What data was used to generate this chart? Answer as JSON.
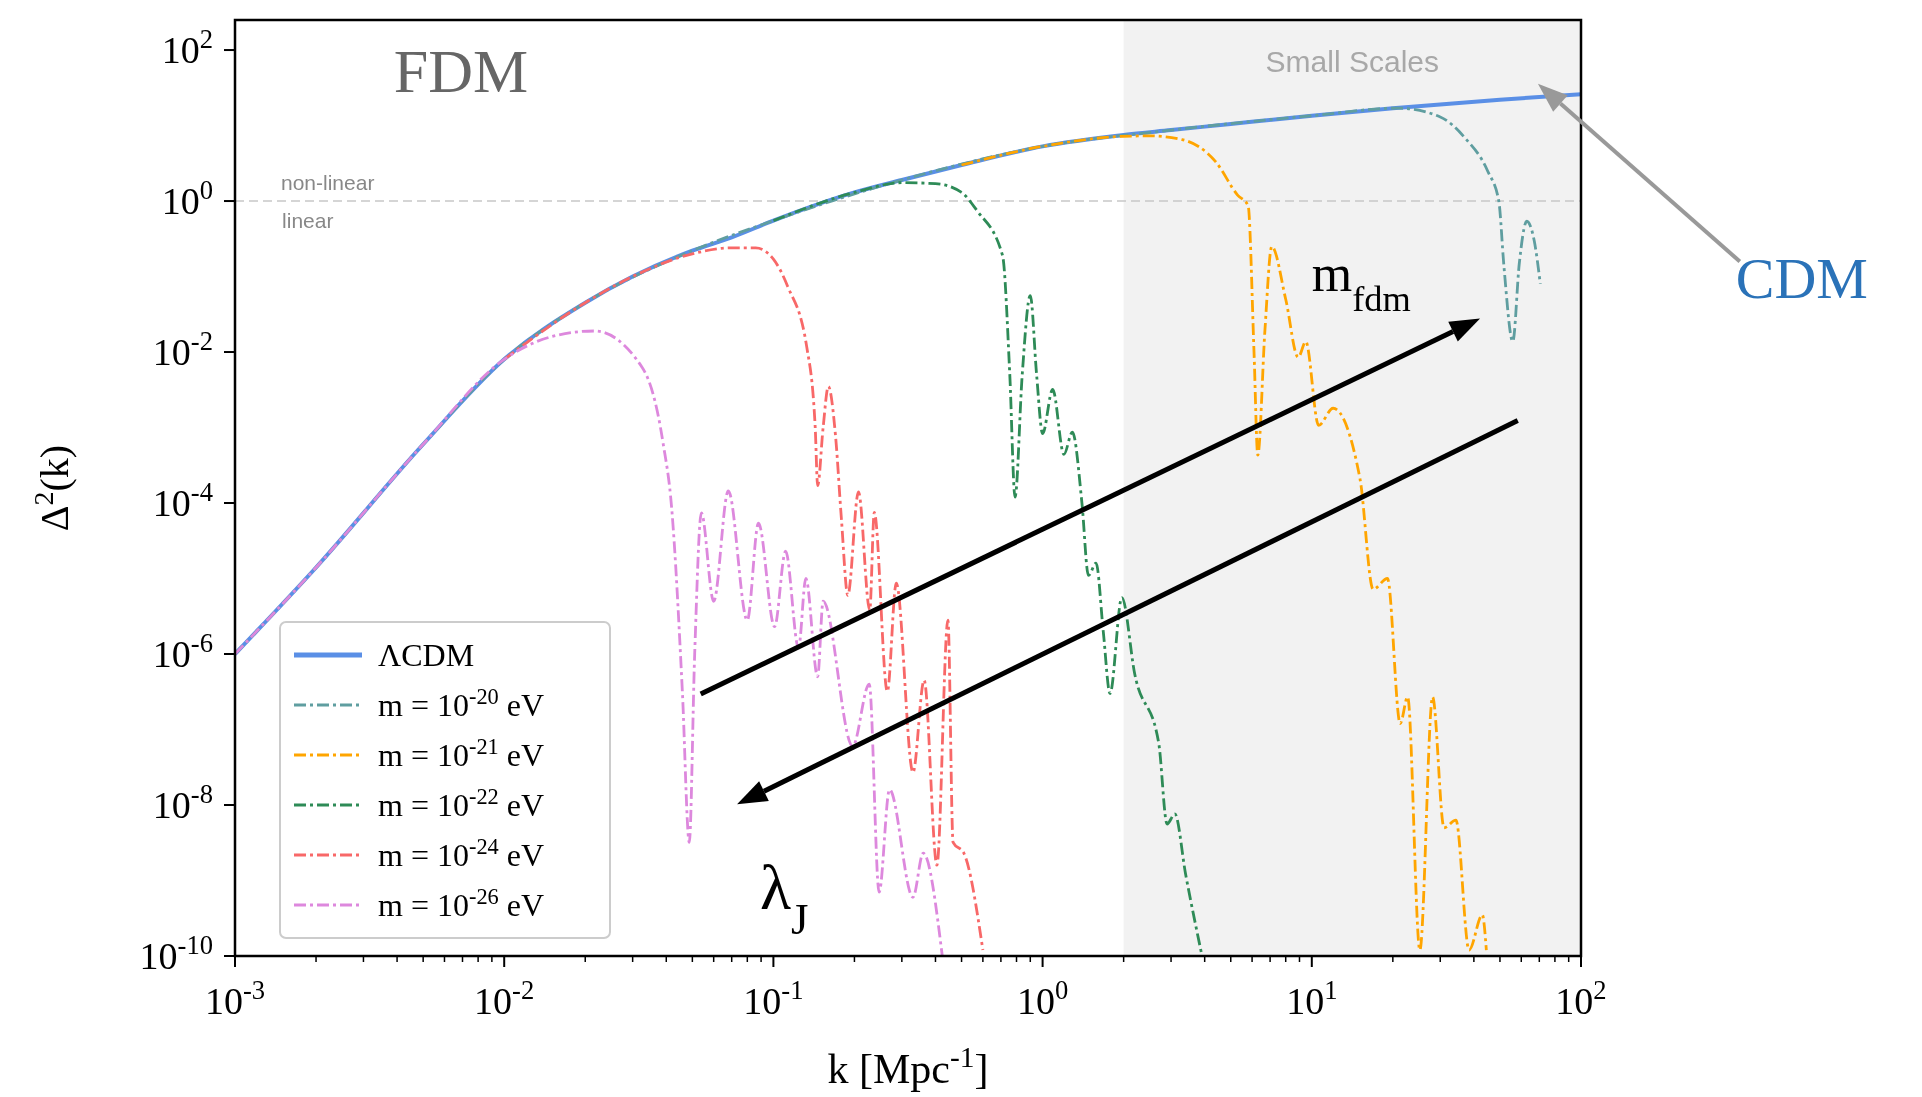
{
  "chart_data": {
    "type": "line",
    "xlabel": "k  [Mpc$^{-1}$]",
    "ylabel": "Δ$^{2}$(k)",
    "log": "xy",
    "grid": false,
    "legend": "bottom left",
    "xlim": [
      0.001,
      100
    ],
    "ylim": [
      1e-10,
      250
    ],
    "xticks": [
      {
        "value": 0.001,
        "label": "10$^{-3}$"
      },
      {
        "value": 0.002,
        "label": null
      },
      {
        "value": 0.003,
        "label": null
      },
      {
        "value": 0.004,
        "label": null
      },
      {
        "value": 0.005,
        "label": null
      },
      {
        "value": 0.006,
        "label": null
      },
      {
        "value": 0.007,
        "label": null
      },
      {
        "value": 0.008,
        "label": null
      },
      {
        "value": 0.009,
        "label": null
      },
      {
        "value": 0.01,
        "label": "10$^{-2}$"
      },
      {
        "value": 0.02,
        "label": null
      },
      {
        "value": 0.03,
        "label": null
      },
      {
        "value": 0.04,
        "label": null
      },
      {
        "value": 0.05,
        "label": null
      },
      {
        "value": 0.06,
        "label": null
      },
      {
        "value": 0.07,
        "label": null
      },
      {
        "value": 0.08,
        "label": null
      },
      {
        "value": 0.09,
        "label": null
      },
      {
        "value": 0.1,
        "label": "10$^{-1}$"
      },
      {
        "value": 0.2,
        "label": null
      },
      {
        "value": 0.3,
        "label": null
      },
      {
        "value": 0.4,
        "label": null
      },
      {
        "value": 0.5,
        "label": null
      },
      {
        "value": 0.6,
        "label": null
      },
      {
        "value": 0.7,
        "label": null
      },
      {
        "value": 0.8,
        "label": null
      },
      {
        "value": 0.9,
        "label": null
      },
      {
        "value": 1,
        "label": "10$^{0}$"
      },
      {
        "value": 2,
        "label": null
      },
      {
        "value": 3,
        "label": null
      },
      {
        "value": 4,
        "label": null
      },
      {
        "value": 5,
        "label": null
      },
      {
        "value": 6,
        "label": null
      },
      {
        "value": 7,
        "label": null
      },
      {
        "value": 8,
        "label": null
      },
      {
        "value": 9,
        "label": null
      },
      {
        "value": 10,
        "label": "10$^{1}$"
      },
      {
        "value": 20,
        "label": null
      },
      {
        "value": 30,
        "label": null
      },
      {
        "value": 40,
        "label": null
      },
      {
        "value": 50,
        "label": null
      },
      {
        "value": 60,
        "label": null
      },
      {
        "value": 70,
        "label": null
      },
      {
        "value": 80,
        "label": null
      },
      {
        "value": 90,
        "label": null
      },
      {
        "value": 100,
        "label": "10$^{2}$"
      }
    ],
    "yticks": [
      {
        "value": 1e-10,
        "label": "10$^{-10}$"
      },
      {
        "value": 1e-08,
        "label": "10$^{-8}$"
      },
      {
        "value": 1e-06,
        "label": "10$^{-6}$"
      },
      {
        "value": 0.0001,
        "label": "10$^{-4}$"
      },
      {
        "value": 0.01,
        "label": "10$^{-2}$"
      },
      {
        "value": 1,
        "label": "10$^{0}$"
      },
      {
        "value": 100,
        "label": "10$^{2}$"
      }
    ],
    "bands": [
      {
        "axis": "x",
        "from": 2,
        "to": 100,
        "label": "Small Scales",
        "color": "#f2f2f2"
      }
    ],
    "ref_lines": [
      {
        "axis": "y",
        "value": 1,
        "label": "non-linear",
        "color": "#c8c8c8",
        "line_style": "dashed"
      }
    ],
    "annotations": [
      "FDM",
      "CDM",
      "m$_{fdm}$",
      "λ$_{J}$",
      "linear"
    ],
    "series": [
      {
        "name": "ΛCDM",
        "color": "#5a8fe6",
        "line_style": "solid",
        "x": [
          0.001,
          0.002,
          0.005,
          0.01,
          0.02,
          0.03,
          0.05,
          0.07,
          0.1,
          0.2,
          0.3,
          0.5,
          1,
          2,
          3,
          5,
          10,
          20,
          50,
          100
        ],
        "values": [
          1e-06,
          1.4e-05,
          0.0006,
          0.008,
          0.045,
          0.1,
          0.22,
          0.33,
          0.55,
          1.3,
          1.9,
          3,
          5.3,
          7.5,
          8.7,
          10.5,
          13.5,
          17,
          22,
          26
        ]
      },
      {
        "name": "m = 10$^{-20}$ eV",
        "color": "#5f9ea0",
        "line_style": "dashdot",
        "x": [
          0.001,
          0.002,
          0.005,
          0.01,
          0.02,
          0.05,
          0.1,
          0.3,
          1,
          3,
          10,
          21,
          30,
          37,
          45,
          49.5,
          51.7,
          55.8,
          59,
          62.9,
          67,
          70.6
        ],
        "values": [
          1e-06,
          1.4e-05,
          0.0006,
          0.008,
          0.045,
          0.22,
          0.55,
          1.9,
          5.3,
          8.7,
          13.5,
          17,
          13,
          6.9,
          2.5,
          1.0,
          0.14,
          0.0138,
          0.15,
          0.54,
          0.3,
          0.08
        ]
      },
      {
        "name": "m = 10$^{-21}$ eV",
        "color": "#ffa500",
        "line_style": "dashdot",
        "x": [
          0.5,
          1,
          2,
          2.5,
          3.3,
          4.4,
          5.3,
          5.8,
          6.1,
          6.3,
          6.7,
          7.1,
          8,
          8.9,
          9.5,
          10.6,
          12,
          15.1,
          16.9,
          19.1,
          21.3,
          22.7,
          25.2,
          28.1,
          31,
          34.3,
          38.4,
          43,
          44.5
        ],
        "values": [
          3,
          5.3,
          7.2,
          7.3,
          6.5,
          3.3,
          1.2,
          0.87,
          0.01,
          0.00043,
          0.02,
          0.25,
          0.05,
          0.0085,
          0.0137,
          0.00107,
          0.0018,
          0.00021,
          7.2e-06,
          1e-05,
          1.2e-07,
          2.7e-07,
          1.2e-10,
          2.7e-07,
          5e-09,
          6.3e-09,
          1.2e-10,
          3.5e-10,
          1.2e-10
        ]
      },
      {
        "name": "m = 10$^{-22}$ eV",
        "color": "#2e8b57",
        "line_style": "dashdot",
        "x": [
          0.1,
          0.2,
          0.3,
          0.4,
          0.5,
          0.57,
          0.71,
          0.755,
          0.79,
          0.84,
          0.9,
          0.95,
          1.0,
          1.09,
          1.2,
          1.29,
          1.4,
          1.48,
          1.58,
          1.68,
          1.78,
          1.97,
          2.2,
          2.7,
          2.9,
          3.1,
          3.4,
          3.9
        ],
        "values": [
          0.55,
          1.3,
          1.75,
          1.7,
          1.3,
          0.75,
          0.19,
          0.0052,
          0.00012,
          0.005,
          0.056,
          0.005,
          0.00083,
          0.0032,
          0.00044,
          0.00087,
          0.0001,
          1.1e-05,
          1.6e-05,
          2e-06,
          3e-07,
          5.6e-06,
          5.4e-07,
          6.6e-08,
          5.6e-09,
          7.6e-09,
          1.2e-09,
          1.05e-10
        ]
      },
      {
        "name": "m = 10$^{-24}$ eV",
        "color": "#f86868",
        "line_style": "dashdot",
        "x": [
          0.01,
          0.02,
          0.03,
          0.05,
          0.07,
          0.086,
          0.1,
          0.113,
          0.133,
          0.143,
          0.146,
          0.153,
          0.16,
          0.17,
          0.179,
          0.189,
          0.207,
          0.228,
          0.237,
          0.265,
          0.286,
          0.33,
          0.363,
          0.405,
          0.445,
          0.465,
          0.51,
          0.6
        ],
        "values": [
          0.008,
          0.045,
          0.1,
          0.2,
          0.24,
          0.24,
          0.17,
          0.074,
          0.0117,
          0.001,
          0.00017,
          0.001,
          0.0035,
          0.0008,
          6e-05,
          6e-06,
          0.00014,
          3.8e-06,
          7.5e-05,
          3.2e-07,
          8.7e-06,
          2.7e-08,
          4.5e-07,
          1.6e-09,
          2.8e-06,
          3.2e-09,
          2.3e-09,
          1.2e-10
        ]
      },
      {
        "name": "m = 10$^{-26}$ eV",
        "color": "#dd88dd",
        "line_style": "dashdot",
        "x": [
          0.001,
          0.002,
          0.005,
          0.01,
          0.015,
          0.0216,
          0.0326,
          0.0389,
          0.0419,
          0.0459,
          0.0487,
          0.051,
          0.054,
          0.06,
          0.068,
          0.08,
          0.088,
          0.101,
          0.111,
          0.124,
          0.132,
          0.146,
          0.153,
          0.197,
          0.227,
          0.247,
          0.27,
          0.33,
          0.36,
          0.424
        ],
        "values": [
          1e-06,
          1.4e-05,
          0.0006,
          0.008,
          0.016,
          0.019,
          0.0062,
          0.00063,
          8.5e-05,
          3.2e-07,
          3.2e-09,
          1e-06,
          7.4e-05,
          5e-06,
          0.000145,
          2.8e-06,
          5.4e-05,
          2.3e-06,
          2.3e-05,
          1.2e-06,
          1e-05,
          5e-07,
          5e-06,
          6e-08,
          4e-07,
          7e-10,
          1.6e-08,
          6e-10,
          2.3e-09,
          1e-10
        ]
      }
    ]
  }
}
